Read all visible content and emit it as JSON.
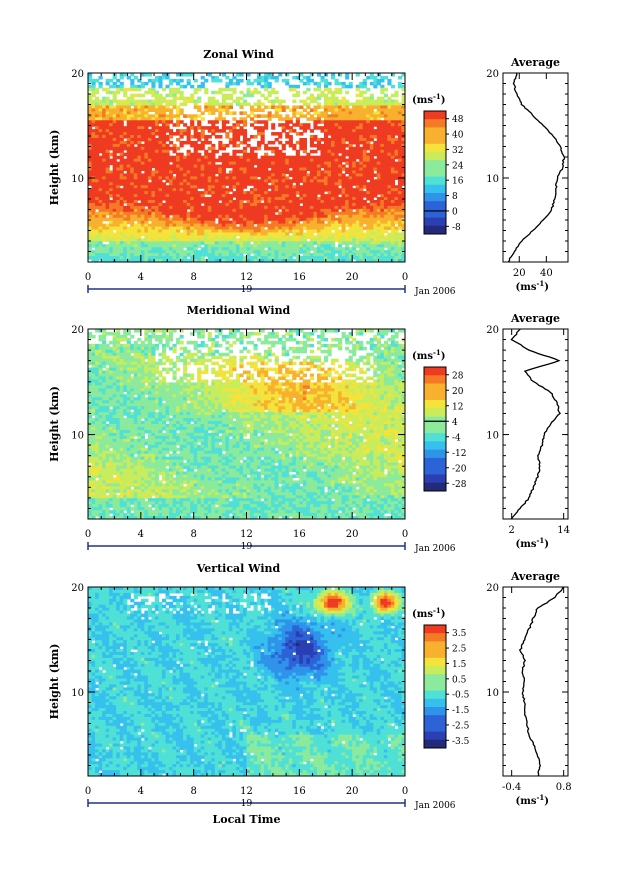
{
  "chart_data": [
    {
      "type": "heatmap",
      "title": "Zonal Wind",
      "ylabel": "Height (km)",
      "x_ticks": [
        "0",
        "4",
        "8",
        "12",
        "16",
        "20",
        "0"
      ],
      "y_ticks": [
        "20",
        "10"
      ],
      "xlim": [
        0,
        24
      ],
      "ylim": [
        2,
        20
      ],
      "day_label": "19",
      "date_label": "Jan 2006",
      "colorbar": {
        "unit": "(ms",
        "unit_exp": "-1",
        "unit_close": ")",
        "ticks": [
          "48",
          "40",
          "32",
          "24",
          "16",
          "8",
          "0",
          "-8"
        ],
        "range": [
          -8,
          52
        ]
      },
      "profile": {
        "title": "Average",
        "y_ticks": [
          "20",
          "10"
        ],
        "x_ticks": [
          "20",
          "40"
        ],
        "xlim": [
          8,
          56
        ],
        "unit": "(ms",
        "unit_exp": "-1",
        "unit_close": ")",
        "heights": [
          2,
          3,
          4,
          5,
          6,
          7,
          8,
          9,
          10,
          11,
          12,
          13,
          14,
          15,
          16,
          17,
          18,
          19,
          20
        ],
        "values": [
          12,
          16,
          22,
          30,
          38,
          44,
          46,
          47,
          48,
          52,
          53,
          50,
          45,
          38,
          30,
          22,
          18,
          16,
          18
        ]
      }
    },
    {
      "type": "heatmap",
      "title": "Meridional Wind",
      "ylabel": "Height (km)",
      "x_ticks": [
        "0",
        "4",
        "8",
        "12",
        "16",
        "20",
        "0"
      ],
      "y_ticks": [
        "20",
        "10"
      ],
      "xlim": [
        0,
        24
      ],
      "ylim": [
        2,
        20
      ],
      "day_label": "19",
      "date_label": "Jan 2006",
      "colorbar": {
        "unit": "(ms",
        "unit_exp": "-1",
        "unit_close": ")",
        "ticks": [
          "28",
          "20",
          "12",
          "4",
          "-4",
          "-12",
          "-20",
          "-28"
        ],
        "range": [
          -32,
          32
        ]
      },
      "profile": {
        "title": "Average",
        "y_ticks": [
          "20",
          "10"
        ],
        "x_ticks": [
          "2",
          "14"
        ],
        "xlim": [
          0,
          15
        ],
        "unit": "(ms",
        "unit_exp": "-1",
        "unit_close": ")",
        "heights": [
          2,
          3,
          4,
          5,
          6,
          7,
          8,
          9,
          10,
          11,
          12,
          13,
          14,
          15,
          16,
          17,
          18,
          19,
          20
        ],
        "values": [
          2,
          4,
          6,
          7,
          8,
          8.5,
          8,
          9,
          9.5,
          11,
          13,
          12.5,
          11,
          7,
          5,
          13,
          6,
          2,
          4
        ]
      }
    },
    {
      "type": "heatmap",
      "title": "Vertical Wind",
      "ylabel": "Height (km)",
      "xlabel": "Local Time",
      "x_ticks": [
        "0",
        "4",
        "8",
        "12",
        "16",
        "20",
        "0"
      ],
      "y_ticks": [
        "20",
        "10"
      ],
      "xlim": [
        0,
        24
      ],
      "ylim": [
        2,
        20
      ],
      "day_label": "19",
      "date_label": "Jan 2006",
      "colorbar": {
        "unit": "(ms",
        "unit_exp": "-1",
        "unit_close": ")",
        "ticks": [
          "3.5",
          "2.5",
          "1.5",
          "0.5",
          "-0.5",
          "-1.5",
          "-2.5",
          "-3.5"
        ],
        "range": [
          -4,
          4
        ]
      },
      "profile": {
        "title": "Average",
        "y_ticks": [
          "20",
          "10"
        ],
        "x_ticks": [
          "-0.4",
          "0.8"
        ],
        "xlim": [
          -0.6,
          0.9
        ],
        "unit": "(ms",
        "unit_exp": "-1",
        "unit_close": ")",
        "heights": [
          2,
          3,
          4,
          5,
          6,
          7,
          8,
          9,
          10,
          11,
          12,
          13,
          14,
          15,
          16,
          17,
          18,
          19,
          20
        ],
        "values": [
          0.2,
          0.25,
          0.2,
          0.1,
          0.0,
          -0.05,
          -0.1,
          -0.1,
          -0.15,
          -0.1,
          -0.15,
          -0.1,
          -0.2,
          -0.1,
          0.0,
          0.1,
          0.2,
          0.6,
          0.8
        ]
      }
    }
  ]
}
